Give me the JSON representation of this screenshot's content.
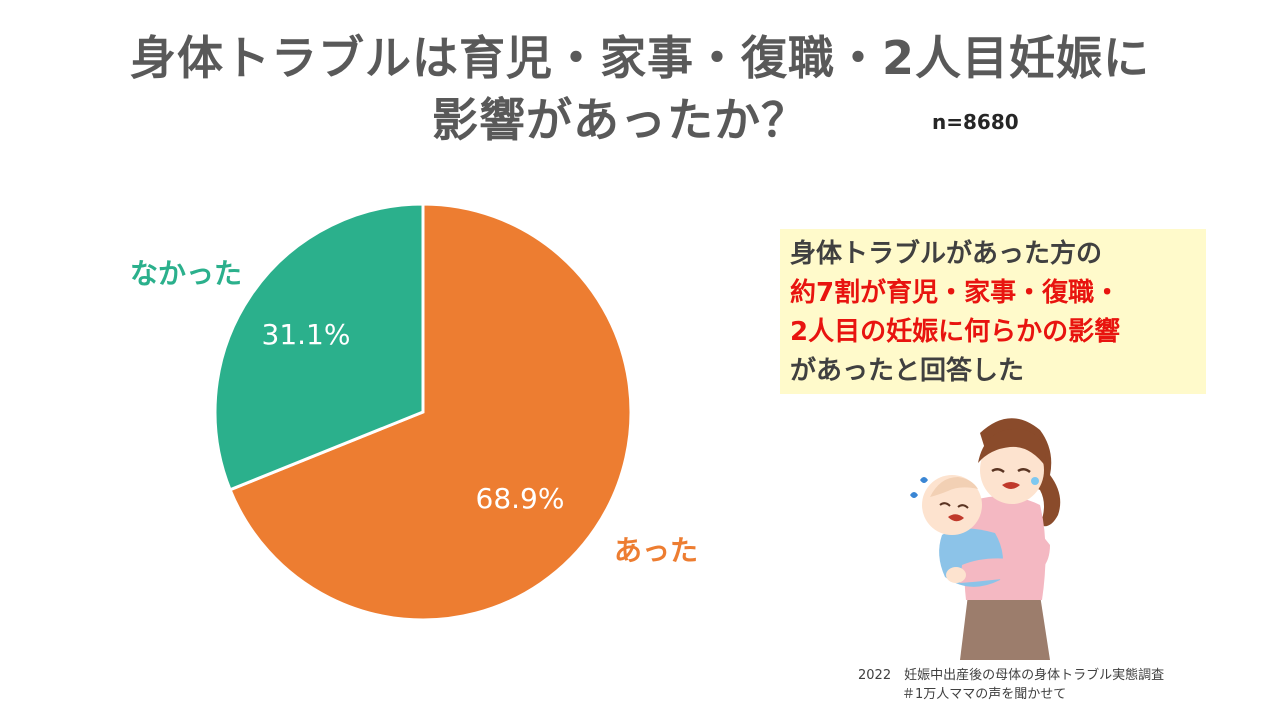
{
  "title": {
    "line1": "身体トラブルは育児・家事・復職・2人目妊娠に",
    "line2": "影響があったか？"
  },
  "sample_size": "n=8680",
  "chart_data": {
    "type": "pie",
    "slices": [
      {
        "label": "あった",
        "value": 68.9,
        "display": "68.9%",
        "color": "#ed7d31",
        "label_color": "#ed7d31"
      },
      {
        "label": "なかった",
        "value": 31.1,
        "display": "31.1%",
        "color": "#2bb08c",
        "label_color": "#2bb08c"
      }
    ],
    "start_angle_deg": 0,
    "direction": "clockwise"
  },
  "callout": {
    "line1": "身体トラブルがあった方の",
    "line2": "約7割が育児・家事・復職・",
    "line3": "2人目の妊娠に何らかの影響",
    "line4": "があったと回答した"
  },
  "source": {
    "line1": "2022　妊娠中出産後の母体の身体トラブル実態調査",
    "line2": "＃1万人ママの声を聞かせて"
  }
}
